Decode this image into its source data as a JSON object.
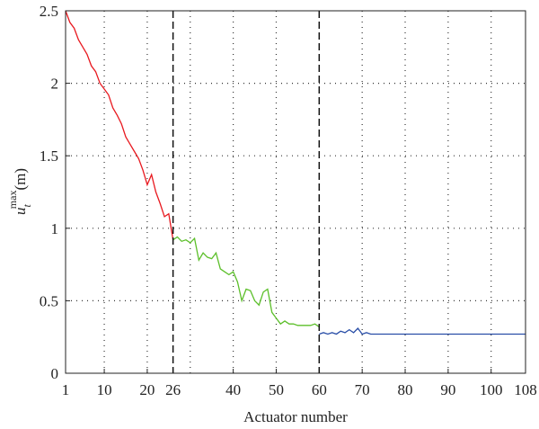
{
  "chart_data": {
    "type": "line",
    "xlabel": "Actuator number",
    "ylabel": {
      "base": "u",
      "sub": "t",
      "sup": "max",
      "unit": "(m)"
    },
    "xlim": [
      1,
      108
    ],
    "ylim": [
      0,
      2.5
    ],
    "xticks": [
      1,
      10,
      20,
      26,
      40,
      50,
      60,
      70,
      80,
      90,
      100,
      108
    ],
    "yticks": [
      0,
      0.5,
      1,
      1.5,
      2,
      2.5
    ],
    "xgrid": [
      10,
      20,
      30,
      40,
      50,
      70,
      80,
      90,
      100
    ],
    "ygrid": [
      0.5,
      1,
      1.5,
      2
    ],
    "vlines": [
      26,
      60
    ],
    "grid": true,
    "series": [
      {
        "color": "#e8191f",
        "x": [
          1,
          2,
          3,
          4,
          5,
          6,
          7,
          8,
          9,
          10,
          11,
          12,
          13,
          14,
          15,
          16,
          17,
          18,
          19,
          20,
          21,
          22,
          23,
          24,
          25,
          26
        ],
        "values": [
          2.5,
          2.42,
          2.38,
          2.3,
          2.25,
          2.2,
          2.12,
          2.08,
          2.0,
          1.96,
          1.92,
          1.83,
          1.78,
          1.72,
          1.63,
          1.58,
          1.53,
          1.48,
          1.4,
          1.3,
          1.37,
          1.25,
          1.17,
          1.08,
          1.1,
          0.92
        ]
      },
      {
        "color": "#5cbf2a",
        "x": [
          26,
          27,
          28,
          29,
          30,
          31,
          32,
          33,
          34,
          35,
          36,
          37,
          38,
          39,
          40,
          41,
          42,
          43,
          44,
          45,
          46,
          47,
          48,
          49,
          50,
          51,
          52,
          53,
          54,
          55,
          56,
          57,
          58,
          59,
          60
        ],
        "values": [
          0.92,
          0.94,
          0.91,
          0.92,
          0.9,
          0.93,
          0.78,
          0.83,
          0.8,
          0.79,
          0.83,
          0.72,
          0.7,
          0.68,
          0.7,
          0.63,
          0.5,
          0.58,
          0.57,
          0.5,
          0.47,
          0.56,
          0.58,
          0.42,
          0.38,
          0.34,
          0.36,
          0.34,
          0.34,
          0.33,
          0.33,
          0.33,
          0.33,
          0.34,
          0.32
        ]
      },
      {
        "color": "#2a4fa8",
        "x": [
          60,
          61,
          62,
          63,
          64,
          65,
          66,
          67,
          68,
          69,
          70,
          71,
          72,
          73,
          74,
          75,
          76,
          77,
          78,
          79,
          80,
          81,
          82,
          83,
          84,
          85,
          86,
          87,
          88,
          89,
          90,
          91,
          92,
          93,
          94,
          95,
          96,
          97,
          98,
          99,
          100,
          101,
          102,
          103,
          104,
          105,
          106,
          107,
          108
        ],
        "values": [
          0.27,
          0.28,
          0.27,
          0.28,
          0.27,
          0.29,
          0.28,
          0.3,
          0.28,
          0.31,
          0.27,
          0.28,
          0.27,
          0.27,
          0.27,
          0.27,
          0.27,
          0.27,
          0.27,
          0.27,
          0.27,
          0.27,
          0.27,
          0.27,
          0.27,
          0.27,
          0.27,
          0.27,
          0.27,
          0.27,
          0.27,
          0.27,
          0.27,
          0.27,
          0.27,
          0.27,
          0.27,
          0.27,
          0.27,
          0.27,
          0.27,
          0.27,
          0.27,
          0.27,
          0.27,
          0.27,
          0.27,
          0.27,
          0.27
        ]
      }
    ]
  }
}
